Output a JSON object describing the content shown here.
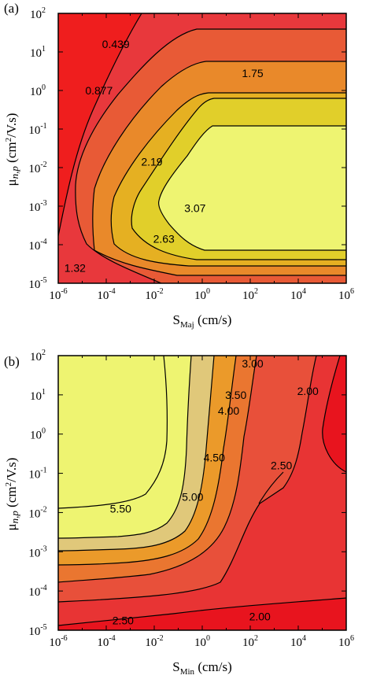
{
  "chart_data": [
    {
      "type": "contour",
      "panel": "(a)",
      "xlabel": {
        "main": "S",
        "sub": "Maj",
        "unit": " (cm/s)"
      },
      "ylabel": {
        "main": "μ",
        "sub": "n,p",
        "unit_pre": " (cm",
        "unit_sup": "2",
        "unit_post": "/V.s)"
      },
      "x_scale": "log",
      "y_scale": "log",
      "xlim_exp": [
        -6,
        6
      ],
      "ylim_exp": [
        -5,
        2
      ],
      "x_ticks": [
        {
          "base": "10",
          "exp": "-6"
        },
        {
          "base": "10",
          "exp": "-4"
        },
        {
          "base": "10",
          "exp": "-2"
        },
        {
          "base": "10",
          "exp": "0"
        },
        {
          "base": "10",
          "exp": "2"
        },
        {
          "base": "10",
          "exp": "4"
        },
        {
          "base": "10",
          "exp": "6"
        }
      ],
      "y_ticks": [
        {
          "base": "10",
          "exp": "-5"
        },
        {
          "base": "10",
          "exp": "-4"
        },
        {
          "base": "10",
          "exp": "-3"
        },
        {
          "base": "10",
          "exp": "-2"
        },
        {
          "base": "10",
          "exp": "-1"
        },
        {
          "base": "10",
          "exp": "0"
        },
        {
          "base": "10",
          "exp": "1"
        },
        {
          "base": "10",
          "exp": "2"
        }
      ],
      "contour_levels": [
        "0.439",
        "0.877",
        "1.32",
        "1.75",
        "2.19",
        "2.63",
        "3.07"
      ],
      "contour_labels": [
        {
          "text": "0.439",
          "x": -3.6,
          "y": 1.2
        },
        {
          "text": "0.877",
          "x": -4.3,
          "y": 0.0
        },
        {
          "text": "1.75",
          "x": 2.1,
          "y": 0.45
        },
        {
          "text": "2.19",
          "x": -2.1,
          "y": -1.85
        },
        {
          "text": "3.07",
          "x": -0.3,
          "y": -3.05
        },
        {
          "text": "2.63",
          "x": -1.6,
          "y": -3.85
        },
        {
          "text": "1.32",
          "x": -5.3,
          "y": -4.6
        }
      ],
      "colors": [
        "#ef1e1e",
        "#e8383c",
        "#e85a36",
        "#e9892a",
        "#e5b022",
        "#e1cf2a",
        "#eef471"
      ]
    },
    {
      "type": "contour",
      "panel": "(b)",
      "xlabel": {
        "main": "S",
        "sub": "Min",
        "unit": " (cm/s)"
      },
      "ylabel": {
        "main": "μ",
        "sub": "n,p",
        "unit_pre": " (cm",
        "unit_sup": "2",
        "unit_post": "/V.s)"
      },
      "x_scale": "log",
      "y_scale": "log",
      "xlim_exp": [
        -6,
        6
      ],
      "ylim_exp": [
        -5,
        2
      ],
      "x_ticks": [
        {
          "base": "10",
          "exp": "-6"
        },
        {
          "base": "10",
          "exp": "-4"
        },
        {
          "base": "10",
          "exp": "-2"
        },
        {
          "base": "10",
          "exp": "0"
        },
        {
          "base": "10",
          "exp": "2"
        },
        {
          "base": "10",
          "exp": "4"
        },
        {
          "base": "10",
          "exp": "6"
        }
      ],
      "y_ticks": [
        {
          "base": "10",
          "exp": "-5"
        },
        {
          "base": "10",
          "exp": "-4"
        },
        {
          "base": "10",
          "exp": "-3"
        },
        {
          "base": "10",
          "exp": "-2"
        },
        {
          "base": "10",
          "exp": "-1"
        },
        {
          "base": "10",
          "exp": "0"
        },
        {
          "base": "10",
          "exp": "1"
        },
        {
          "base": "10",
          "exp": "2"
        }
      ],
      "contour_levels": [
        "2.00",
        "2.50",
        "3.00",
        "3.50",
        "4.00",
        "4.50",
        "5.00",
        "5.50"
      ],
      "contour_labels": [
        {
          "text": "5.50",
          "x": -3.4,
          "y": -1.9
        },
        {
          "text": "5.00",
          "x": -0.4,
          "y": -1.6
        },
        {
          "text": "4.50",
          "x": 0.5,
          "y": -0.6
        },
        {
          "text": "4.00",
          "x": 1.1,
          "y": 0.6
        },
        {
          "text": "3.50",
          "x": 1.4,
          "y": 1.0
        },
        {
          "text": "3.00",
          "x": 2.1,
          "y": 1.8
        },
        {
          "text": "2.00",
          "x": 4.4,
          "y": 1.1
        },
        {
          "text": "2.50",
          "x": 3.3,
          "y": -0.8
        },
        {
          "text": "2.50",
          "x": -3.3,
          "y": -4.75
        },
        {
          "text": "2.00",
          "x": 2.4,
          "y": -4.65
        }
      ],
      "colors": [
        "#e8141e",
        "#e83434",
        "#e8503a",
        "#ea7630",
        "#eb9a2a",
        "#e5bf24",
        "#e0c87a",
        "#eef471"
      ]
    }
  ]
}
